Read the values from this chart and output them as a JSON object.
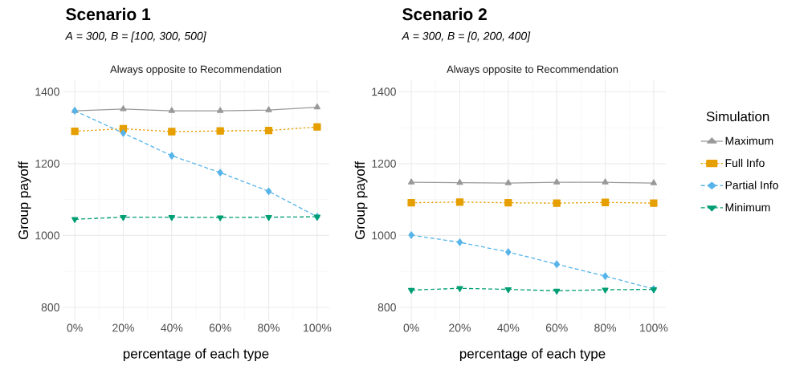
{
  "chart_data": [
    {
      "type": "line",
      "title": "Scenario 1",
      "subtitle": "A = 300, B = [100, 300, 500]",
      "annotations": [
        "Always opposite to Recommendation"
      ],
      "xlabel": "percentage of each type",
      "ylabel": "Group payoff",
      "categories": [
        "0%",
        "20%",
        "40%",
        "60%",
        "80%",
        "100%"
      ],
      "ylim": [
        762,
        1432
      ],
      "yticks": [
        800,
        1000,
        1200,
        1400
      ],
      "grid": true,
      "legend": false,
      "series": [
        {
          "color": "#999999",
          "marker": "triangle",
          "line_style": "solid",
          "values": [
            1347,
            1352,
            1347,
            1347,
            1349,
            1357
          ]
        },
        {
          "color": "#E69F00",
          "marker": "square",
          "line_style": "dotted",
          "values": [
            1290,
            1297,
            1289,
            1291,
            1292,
            1302
          ]
        },
        {
          "color": "#56B4E9",
          "marker": "diamond",
          "line_style": "dashed",
          "values": [
            1347,
            1285,
            1222,
            1175,
            1123,
            1052
          ]
        },
        {
          "color": "#009E73",
          "marker": "triangle-down",
          "line_style": "dashed",
          "values": [
            1045,
            1051,
            1051,
            1050,
            1051,
            1052
          ]
        }
      ]
    },
    {
      "type": "line",
      "title": "Scenario 2",
      "subtitle": "A = 300, B = [0, 200, 400]",
      "annotations": [
        "Always opposite to Recommendation"
      ],
      "xlabel": "percentage of each type",
      "ylabel": "Group payoff",
      "categories": [
        "0%",
        "20%",
        "40%",
        "60%",
        "80%",
        "100%"
      ],
      "ylim": [
        762,
        1432
      ],
      "yticks": [
        800,
        1000,
        1200,
        1400
      ],
      "grid": true,
      "legend": "right",
      "legend_title": "Simulation",
      "series": [
        {
          "name": "Maximum",
          "color": "#999999",
          "marker": "triangle",
          "line_style": "solid",
          "values": [
            1148,
            1147,
            1146,
            1148,
            1148,
            1146
          ]
        },
        {
          "name": "Full Info",
          "color": "#E69F00",
          "marker": "square",
          "line_style": "dotted",
          "values": [
            1091,
            1093,
            1091,
            1090,
            1092,
            1090
          ]
        },
        {
          "name": "Partial Info",
          "color": "#56B4E9",
          "marker": "diamond",
          "line_style": "dashed",
          "values": [
            1001,
            981,
            954,
            920,
            887,
            851
          ]
        },
        {
          "name": "Minimum",
          "color": "#009E73",
          "marker": "triangle-down",
          "line_style": "dashed",
          "values": [
            848,
            853,
            850,
            846,
            849,
            850
          ]
        }
      ]
    }
  ]
}
